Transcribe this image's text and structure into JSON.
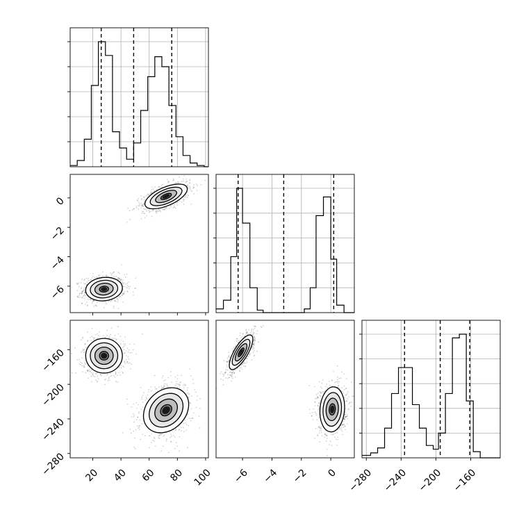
{
  "chart_data": {
    "type": "corner",
    "title": "",
    "grid": true,
    "params": [
      {
        "range": [
          4,
          102
        ],
        "ticks": [
          20,
          40,
          60,
          80,
          100
        ],
        "tick_labels": [
          "20",
          "40",
          "60",
          "80",
          "100"
        ],
        "quantiles": [
          26,
          49,
          76
        ],
        "hist_edges": [
          4,
          9,
          14,
          19,
          24,
          29,
          34,
          39,
          44,
          49,
          54,
          59,
          64,
          69,
          74,
          79,
          84,
          89,
          94,
          99,
          102
        ],
        "hist_counts": [
          0.01,
          0.05,
          0.22,
          0.65,
          1.0,
          0.89,
          0.28,
          0.15,
          0.06,
          0.19,
          0.45,
          0.72,
          0.88,
          0.8,
          0.49,
          0.24,
          0.09,
          0.03,
          0.01,
          0.0
        ]
      },
      {
        "range": [
          -7.8,
          1.6
        ],
        "ticks": [
          -6,
          -4,
          -2,
          0
        ],
        "tick_labels": [
          "−6",
          "−4",
          "−2",
          "0"
        ],
        "quantiles": [
          -6.3,
          -3.2,
          0.2
        ],
        "hist_edges": [
          -7.8,
          -7.3,
          -6.8,
          -6.4,
          -6.0,
          -5.5,
          -5.0,
          -4.6,
          -4.2,
          -3.7,
          -3.2,
          -2.8,
          -2.3,
          -1.8,
          -1.4,
          -1.0,
          -0.5,
          0.0,
          0.4,
          0.9,
          1.6
        ],
        "hist_counts": [
          0.03,
          0.1,
          0.45,
          1.0,
          0.72,
          0.2,
          0.02,
          0.0,
          0.0,
          0.0,
          0.0,
          0.0,
          0.0,
          0.03,
          0.2,
          0.78,
          0.93,
          0.43,
          0.06,
          0.0
        ]
      },
      {
        "range": [
          -285,
          -126
        ],
        "ticks": [
          -280,
          -240,
          -200,
          -160
        ],
        "tick_labels": [
          "−280",
          "−240",
          "−200",
          "−160"
        ],
        "quantiles": [
          -236,
          -195,
          -161
        ],
        "hist_edges": [
          -285,
          -275,
          -267,
          -259,
          -251,
          -243,
          -235,
          -227,
          -219,
          -211,
          -203,
          -197,
          -189,
          -181,
          -173,
          -165,
          -157,
          -149,
          -141,
          -134,
          -126
        ],
        "hist_counts": [
          0.02,
          0.04,
          0.08,
          0.24,
          0.52,
          0.73,
          0.73,
          0.43,
          0.24,
          0.1,
          0.07,
          0.2,
          0.52,
          0.97,
          1.0,
          0.46,
          0.05,
          0.0,
          0.0,
          0.0
        ]
      }
    ],
    "pairs": [
      {
        "row": 1,
        "col": 0,
        "correlation": "positive",
        "modes": [
          {
            "x": 28,
            "y": -6.2,
            "sx": 6.5,
            "sy": 0.4,
            "rho": 0.1,
            "weight": 0.5
          },
          {
            "x": 72,
            "y": 0.1,
            "sx": 7.5,
            "sy": 0.42,
            "rho": 0.6,
            "weight": 0.5
          }
        ]
      },
      {
        "row": 2,
        "col": 0,
        "modes": [
          {
            "x": 28,
            "y": -167,
            "sx": 6.5,
            "sy": 10,
            "rho": 0.0,
            "weight": 0.5
          },
          {
            "x": 72,
            "y": -230,
            "sx": 8,
            "sy": 13,
            "rho": 0.25,
            "weight": 0.5
          }
        ]
      },
      {
        "row": 2,
        "col": 1,
        "modes": [
          {
            "x": -6.1,
            "y": -163,
            "sx": 0.4,
            "sy": 10,
            "rho": 0.75,
            "weight": 0.5
          },
          {
            "x": 0.1,
            "y": -229,
            "sx": 0.42,
            "sy": 13,
            "rho": 0.1,
            "weight": 0.5
          }
        ]
      }
    ]
  }
}
